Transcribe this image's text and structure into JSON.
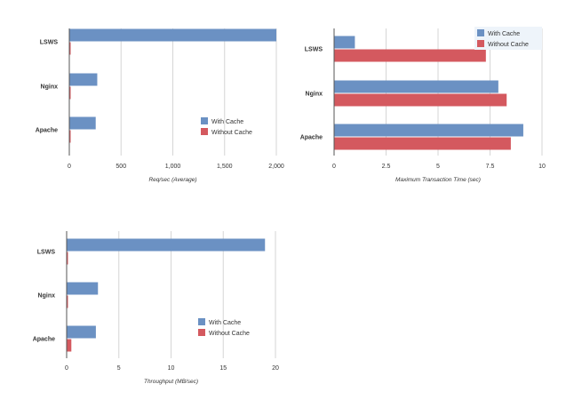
{
  "colors": {
    "with_cache": "#6b91c3",
    "without_cache": "#d4595f",
    "grid": "#d6d6d6",
    "axis": "#555555",
    "text": "#333333"
  },
  "chart_data": [
    {
      "type": "bar",
      "orientation": "horizontal",
      "categories": [
        "LSWS",
        "Nginx",
        "Apache"
      ],
      "series": [
        {
          "name": "With Cache",
          "values": [
            2000,
            270,
            255
          ]
        },
        {
          "name": "Without Cache",
          "values": [
            8,
            6,
            6
          ]
        }
      ],
      "xlabel": "Req/sec (Average)",
      "ticks": [
        "0",
        "500",
        "1,000",
        "1,500",
        "2,000"
      ],
      "tick_values": [
        0,
        500,
        1000,
        1500,
        2000
      ],
      "xlim": [
        0,
        2000
      ],
      "grid": true,
      "legend": "center-right"
    },
    {
      "type": "bar",
      "orientation": "horizontal",
      "categories": [
        "LSWS",
        "Nginx",
        "Apache"
      ],
      "series": [
        {
          "name": "With Cache",
          "values": [
            1.0,
            7.9,
            9.1
          ]
        },
        {
          "name": "Without Cache",
          "values": [
            7.3,
            8.3,
            8.5
          ]
        }
      ],
      "xlabel": "Maximum Transaction Time (sec)",
      "ticks": [
        "0",
        "2.5",
        "5",
        "7.5",
        "10"
      ],
      "tick_values": [
        0,
        2.5,
        5,
        7.5,
        10
      ],
      "xlim": [
        0,
        10
      ],
      "grid": true,
      "legend": "top-right"
    },
    {
      "type": "bar",
      "orientation": "horizontal",
      "categories": [
        "LSWS",
        "Nginx",
        "Apache"
      ],
      "series": [
        {
          "name": "With Cache",
          "values": [
            19.0,
            3.0,
            2.8
          ]
        },
        {
          "name": "Without Cache",
          "values": [
            0.1,
            0.1,
            0.45
          ]
        }
      ],
      "xlabel": "Throughput (MB/sec)",
      "ticks": [
        "0",
        "5",
        "10",
        "15",
        "20"
      ],
      "tick_values": [
        0,
        5,
        10,
        15,
        20
      ],
      "xlim": [
        0,
        20
      ],
      "grid": true,
      "legend": "center-right"
    }
  ]
}
